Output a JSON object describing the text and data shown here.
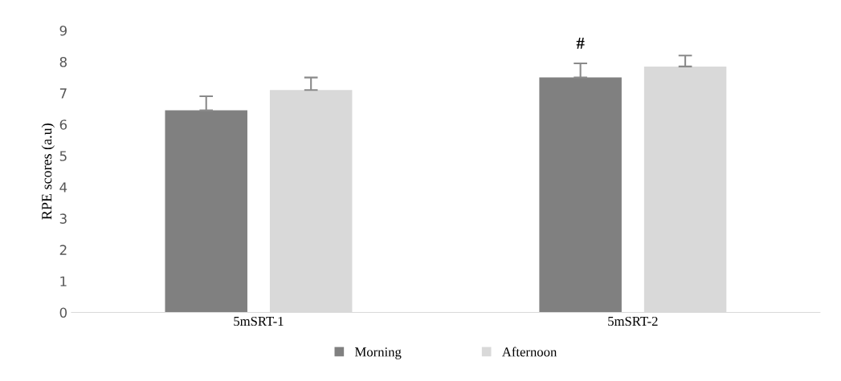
{
  "chart_data": {
    "type": "bar",
    "ylabel": "RPE scores (a.u)",
    "categories": [
      "5mSRT-1",
      "5mSRT-2"
    ],
    "series": [
      {
        "name": "Morning",
        "color": "#808080",
        "values": [
          6.45,
          7.5
        ],
        "errors": [
          [
            6.45,
            6.9
          ],
          [
            7.5,
            7.95
          ]
        ]
      },
      {
        "name": "Afternoon",
        "color": "#d9d9d9",
        "values": [
          7.1,
          7.85
        ],
        "errors": [
          [
            7.1,
            7.5
          ],
          [
            7.85,
            8.2
          ]
        ]
      }
    ],
    "ylim": [
      0,
      9
    ],
    "yticks": [
      0,
      1,
      2,
      3,
      4,
      5,
      6,
      7,
      8,
      9
    ],
    "grid": false,
    "legend": "bottom",
    "annotations": [
      "#"
    ]
  }
}
